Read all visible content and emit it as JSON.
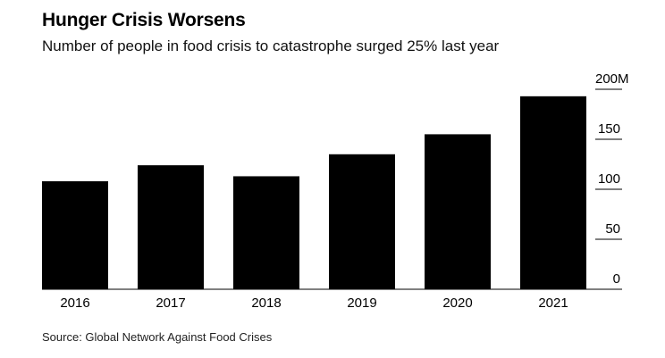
{
  "header": {
    "title": "Hunger Crisis Worsens",
    "subtitle": "Number of people in food crisis to catastrophe surged 25% last year"
  },
  "footer": {
    "source": "Source: Global Network Against Food Crises"
  },
  "colors": {
    "bar": "#000000",
    "gridline": "#000000"
  },
  "chart_data": {
    "type": "bar",
    "categories": [
      "2016",
      "2017",
      "2018",
      "2019",
      "2020",
      "2021"
    ],
    "values": [
      108,
      124,
      113,
      135,
      155,
      193
    ],
    "ylim": [
      0,
      200
    ],
    "yticks": [
      0,
      50,
      100,
      150,
      200
    ],
    "ytick_labels": [
      "0",
      "50",
      "100",
      "150",
      "200M"
    ],
    "y_axis_side": "right",
    "grid": "short tick lines at y labels, right side"
  }
}
